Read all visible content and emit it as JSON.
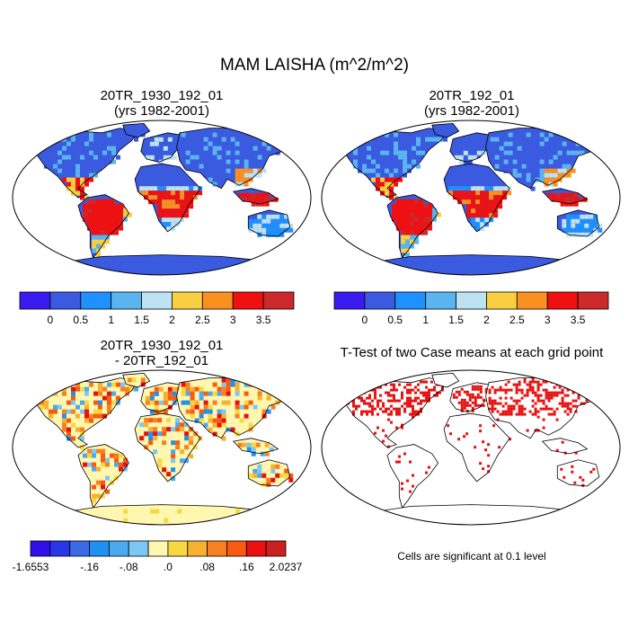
{
  "title": "MAM LAISHA (m^2/m^2)",
  "panels": [
    {
      "id": "p1",
      "title_line1": "20TR_1930_192_01",
      "title_line2": "(yrs 1982-2001)",
      "kind": "mean"
    },
    {
      "id": "p2",
      "title_line1": "20TR_192_01",
      "title_line2": "(yrs 1982-2001)",
      "kind": "mean"
    },
    {
      "id": "p3",
      "title_line1": "20TR_1930_192_01",
      "title_line2": "- 20TR_192_01",
      "kind": "difference"
    },
    {
      "id": "p4",
      "title_line1": "T-Test of two Case means at each grid point",
      "title_line2": "",
      "kind": "significance"
    }
  ],
  "footnote": "Cells are significant at 0.1 level",
  "chart_data": [
    {
      "type": "heatmap",
      "title": "20TR_1930_192_01 (yrs 1982-2001)",
      "variable": "MAM LAISHA",
      "units": "m^2/m^2",
      "colorbar": {
        "levels": [
          0,
          0.5,
          1,
          1.5,
          2,
          2.5,
          3,
          3.5
        ],
        "tick_labels": [
          "0",
          "0.5",
          "1",
          "1.5",
          "2",
          "2.5",
          "3",
          "3.5"
        ],
        "colors": [
          "#3a1cf0",
          "#3a5ae0",
          "#1e90ff",
          "#5ab4f0",
          "#bde3f2",
          "#f8cf40",
          "#fa9020",
          "#f01010",
          "#cc2a2a"
        ]
      }
    },
    {
      "type": "heatmap",
      "title": "20TR_192_01 (yrs 1982-2001)",
      "variable": "MAM LAISHA",
      "units": "m^2/m^2",
      "colorbar": {
        "levels": [
          0,
          0.5,
          1,
          1.5,
          2,
          2.5,
          3,
          3.5
        ],
        "tick_labels": [
          "0",
          "0.5",
          "1",
          "1.5",
          "2",
          "2.5",
          "3",
          "3.5"
        ],
        "colors": [
          "#3a1cf0",
          "#3a5ae0",
          "#1e90ff",
          "#5ab4f0",
          "#bde3f2",
          "#f8cf40",
          "#fa9020",
          "#f01010",
          "#cc2a2a"
        ]
      }
    },
    {
      "type": "heatmap",
      "title": "20TR_1930_192_01 - 20TR_192_01",
      "variable": "MAM LAISHA difference",
      "colorbar": {
        "min_label": "-1.6553",
        "max_label": "2.0237",
        "tick_labels": [
          "-1.6553",
          "-.16",
          "-.08",
          ".0",
          ".08",
          ".16",
          "2.0237"
        ],
        "colors": [
          "#3010e8",
          "#2838e8",
          "#3a6ae8",
          "#1e90f0",
          "#4aaaf0",
          "#7cc8f4",
          "#fff6b0",
          "#f8d840",
          "#f8b030",
          "#f88020",
          "#f85a10",
          "#e81010",
          "#cc2020"
        ]
      }
    },
    {
      "type": "heatmap",
      "title": "T-Test of two Case means at each grid point",
      "note": "Cells are significant at 0.1 level",
      "significant_color": "#e81010"
    }
  ]
}
